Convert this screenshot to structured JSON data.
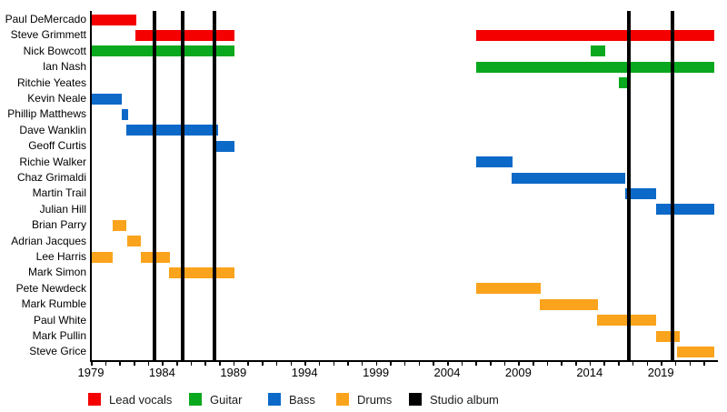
{
  "chart_data": {
    "type": "timeline",
    "description": "Band line-up timeline chart: horizontal tenure bars per member, colored by role, with vertical black lines marking studio albums.",
    "x_axis": {
      "min": 1979,
      "max": 2022.75,
      "minor_tick_step": 1,
      "labeled_ticks": [
        1979,
        1984,
        1989,
        1994,
        1999,
        2004,
        2009,
        2014,
        2019
      ]
    },
    "roles": {
      "vocals": {
        "label": "Lead vocals",
        "color": "#f40000"
      },
      "guitar": {
        "label": "Guitar",
        "color": "#0aa81e"
      },
      "bass": {
        "label": "Bass",
        "color": "#0c69c8"
      },
      "drums": {
        "label": "Drums",
        "color": "#faa31c"
      },
      "album": {
        "label": "Studio album",
        "color": "#000000"
      }
    },
    "legend_order": [
      "vocals",
      "guitar",
      "bass",
      "drums",
      "album"
    ],
    "album_lines": [
      1983.46,
      1985.44,
      1987.67,
      2016.76,
      2019.82
    ],
    "members": [
      {
        "name": "Paul DeMercado",
        "role": "vocals",
        "periods": [
          [
            1979.05,
            1982.2
          ]
        ]
      },
      {
        "name": "Steve Grimmett",
        "role": "vocals",
        "periods": [
          [
            1982.1,
            1989.1
          ],
          [
            2006.05,
            2022.75
          ]
        ]
      },
      {
        "name": "Nick Bowcott",
        "role": "guitar",
        "periods": [
          [
            1979.05,
            1989.1
          ],
          [
            2014.05,
            2015.1
          ]
        ]
      },
      {
        "name": "Ian Nash",
        "role": "guitar",
        "periods": [
          [
            2006.05,
            2022.75
          ]
        ]
      },
      {
        "name": "Ritchie Yeates",
        "role": "guitar",
        "periods": [
          [
            2016.05,
            2016.6
          ]
        ]
      },
      {
        "name": "Kevin Neale",
        "role": "bass",
        "periods": [
          [
            1979.05,
            1981.2
          ]
        ]
      },
      {
        "name": "Phillip Matthews",
        "role": "bass",
        "periods": [
          [
            1981.15,
            1981.6
          ]
        ]
      },
      {
        "name": "Dave Wanklin",
        "role": "bass",
        "periods": [
          [
            1981.5,
            1987.9
          ]
        ]
      },
      {
        "name": "Geoff Curtis",
        "role": "bass",
        "periods": [
          [
            1987.8,
            1989.1
          ]
        ]
      },
      {
        "name": "Richie Walker",
        "role": "bass",
        "periods": [
          [
            2006.05,
            2008.6
          ]
        ]
      },
      {
        "name": "Chaz Grimaldi",
        "role": "bass",
        "periods": [
          [
            2008.5,
            2016.5
          ]
        ]
      },
      {
        "name": "Martin Trail",
        "role": "bass",
        "periods": [
          [
            2016.5,
            2018.7
          ]
        ]
      },
      {
        "name": "Julian Hill",
        "role": "bass",
        "periods": [
          [
            2018.7,
            2022.75
          ]
        ]
      },
      {
        "name": "Brian Parry",
        "role": "drums",
        "periods": [
          [
            1980.5,
            1981.5
          ]
        ]
      },
      {
        "name": "Adrian Jacques",
        "role": "drums",
        "periods": [
          [
            1981.55,
            1982.5
          ]
        ]
      },
      {
        "name": "Lee Harris",
        "role": "drums",
        "periods": [
          [
            1979.05,
            1980.55
          ],
          [
            1982.5,
            1984.55
          ]
        ]
      },
      {
        "name": "Mark Simon",
        "role": "drums",
        "periods": [
          [
            1984.5,
            1989.1
          ]
        ]
      },
      {
        "name": "Pete Newdeck",
        "role": "drums",
        "periods": [
          [
            2006.05,
            2010.6
          ]
        ]
      },
      {
        "name": "Mark Rumble",
        "role": "drums",
        "periods": [
          [
            2010.5,
            2014.6
          ]
        ]
      },
      {
        "name": "Paul White",
        "role": "drums",
        "periods": [
          [
            2014.5,
            2018.7
          ]
        ]
      },
      {
        "name": "Mark Pullin",
        "role": "drums",
        "periods": [
          [
            2018.7,
            2020.3
          ]
        ]
      },
      {
        "name": "Steve Grice",
        "role": "drums",
        "periods": [
          [
            2020.15,
            2022.75
          ]
        ]
      }
    ]
  }
}
